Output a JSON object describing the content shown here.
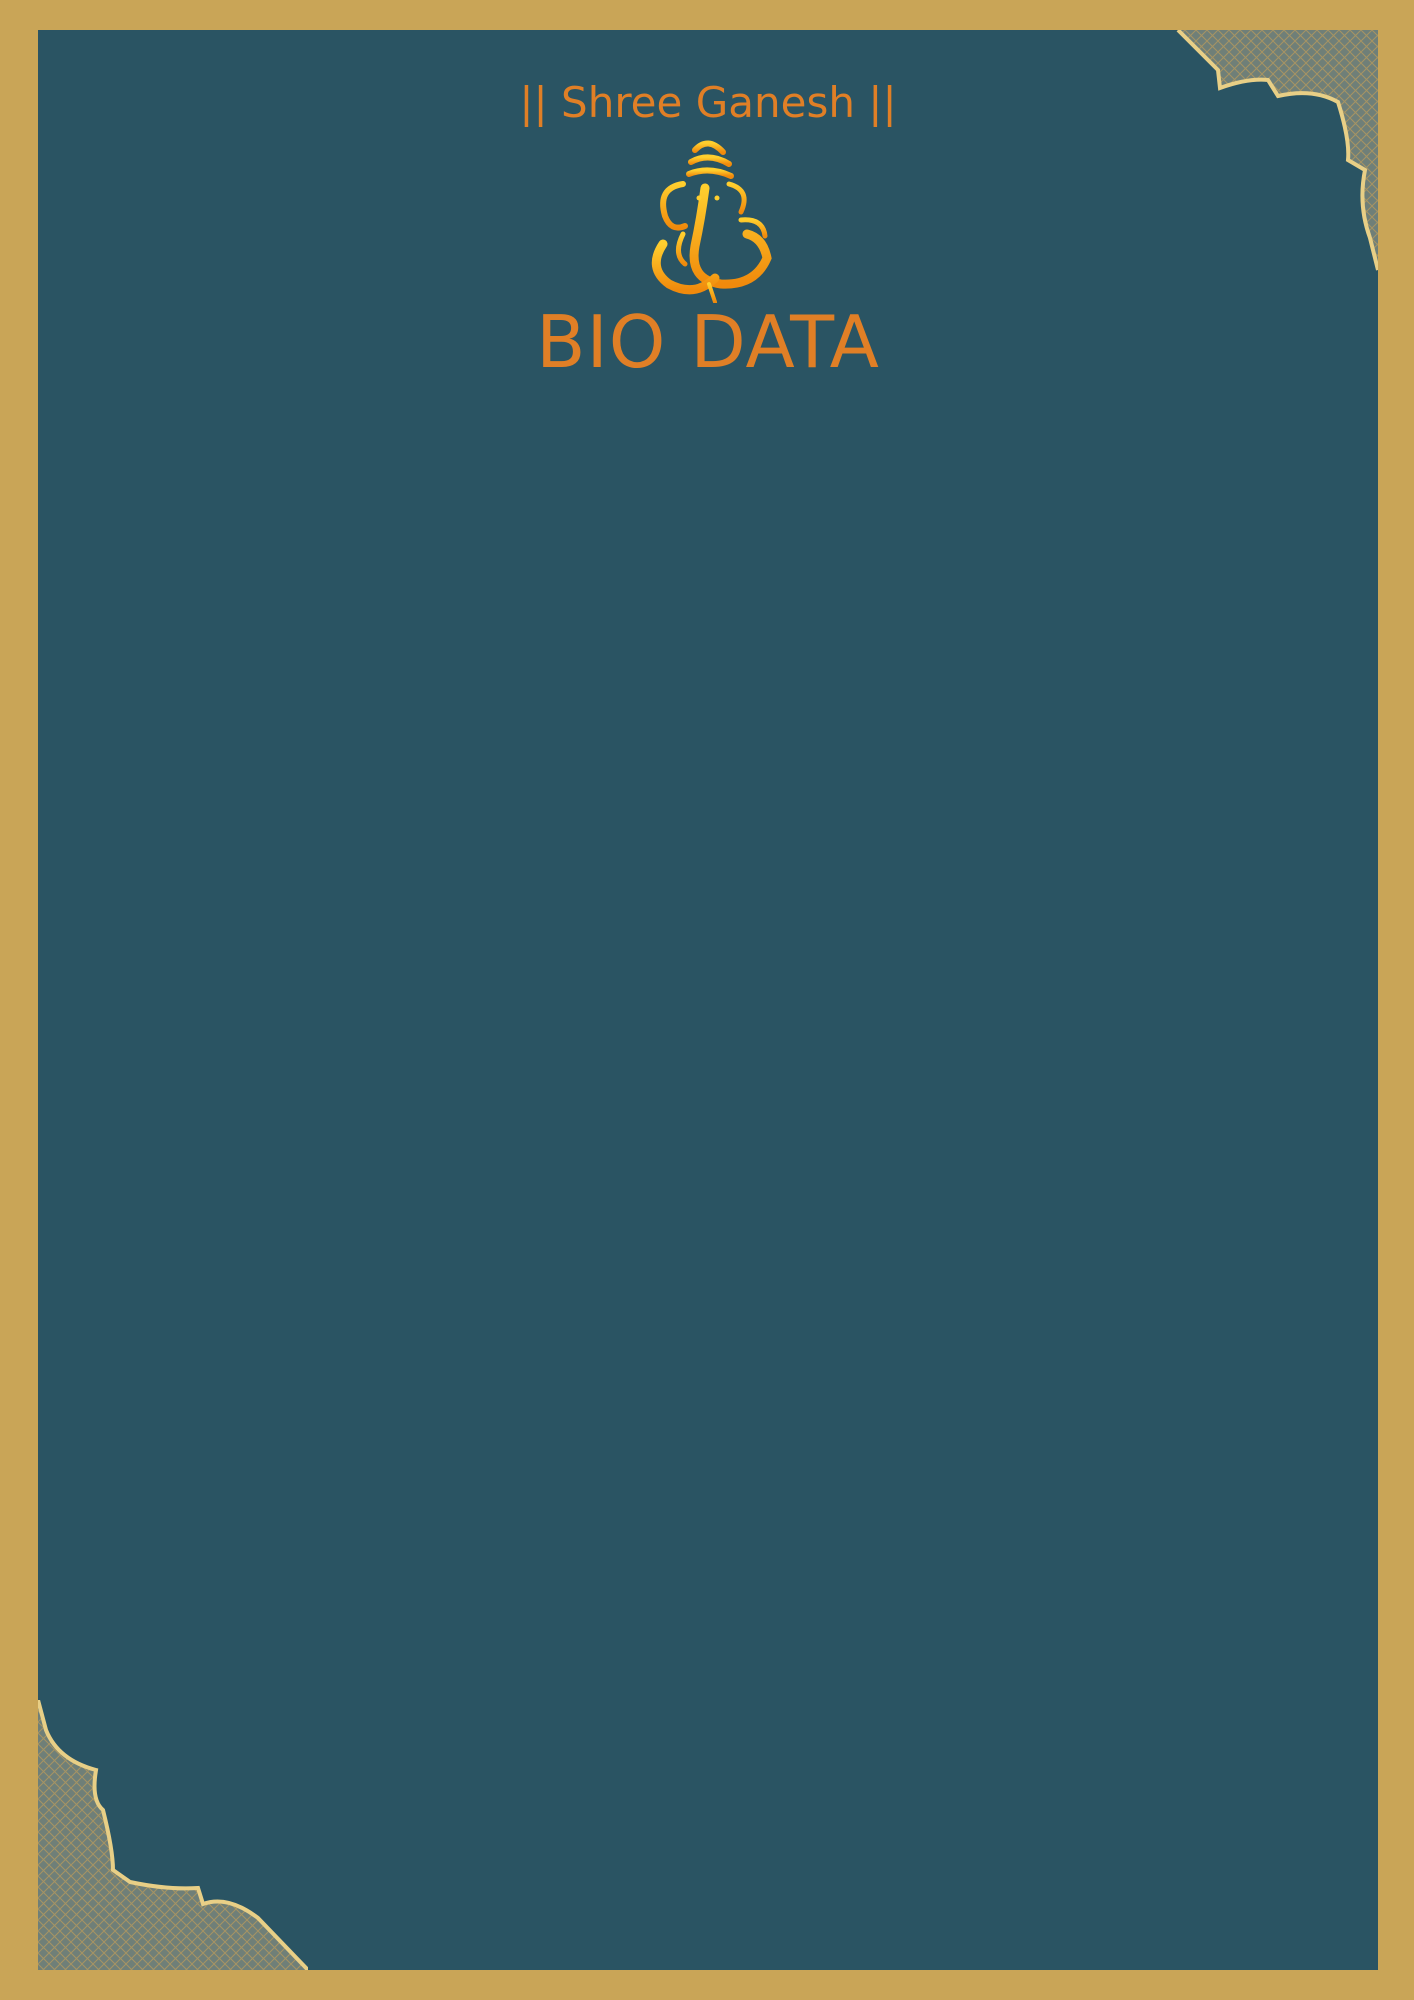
{
  "document": {
    "subtitle": "|| Shree Ganesh ||",
    "title": "BIO DATA",
    "emblem_icon": "ganesha-icon",
    "corner_ornament_icon": "lattice-corner-ornament-icon"
  },
  "colors": {
    "border": "#c9a557",
    "panel": "#2a5463",
    "text_accent": "#e07f26",
    "ornament_gold": "#e8cf86"
  }
}
